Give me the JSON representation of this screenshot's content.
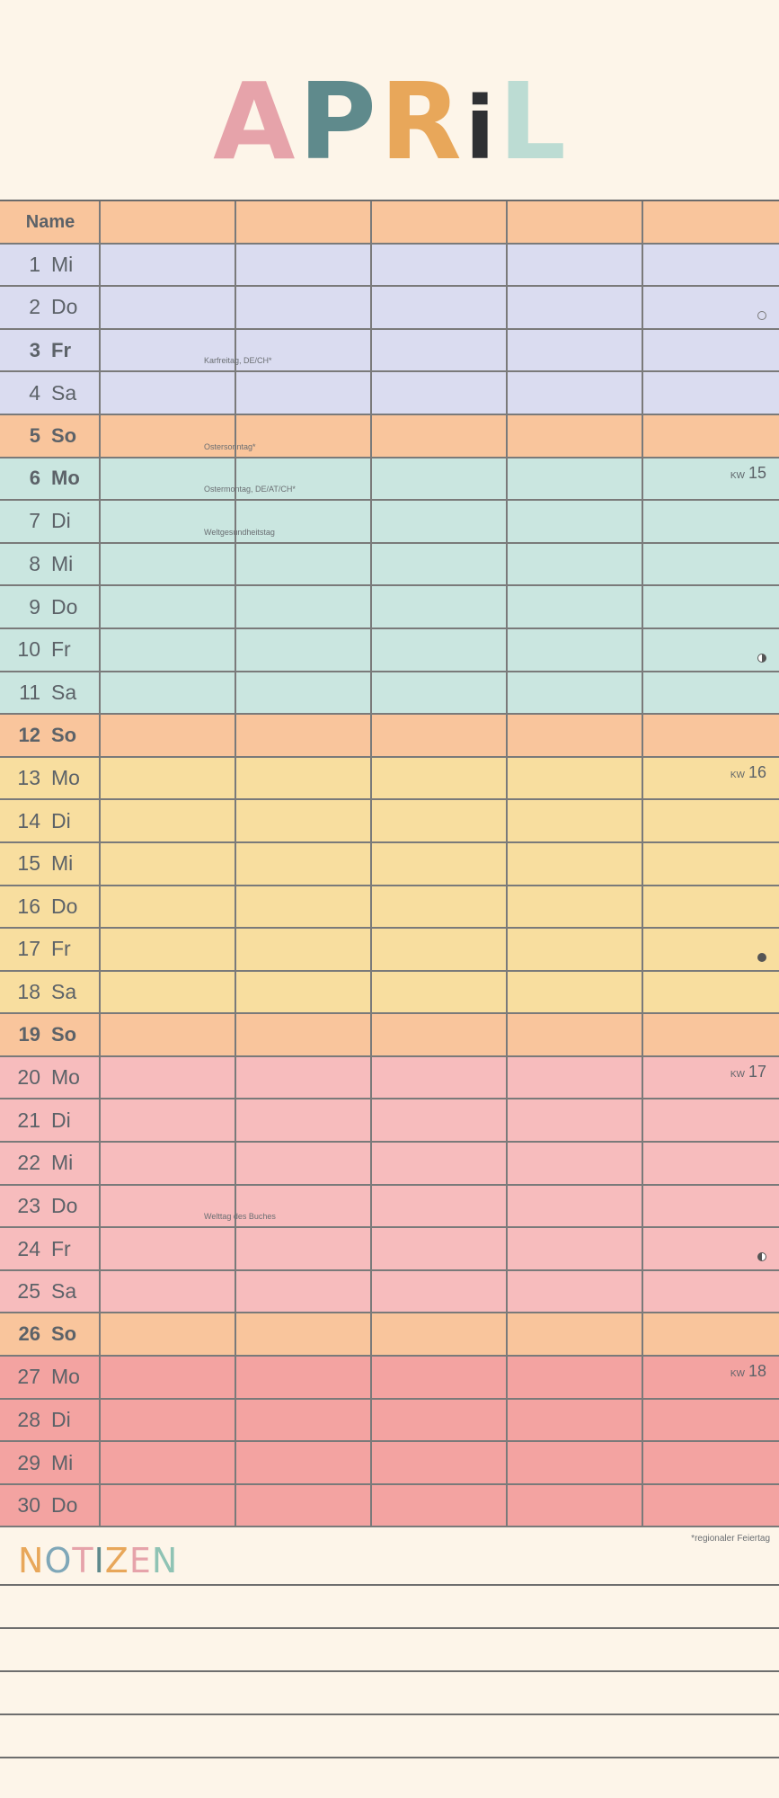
{
  "title": {
    "letters": [
      {
        "char": "A",
        "color": "#e6a3aa"
      },
      {
        "char": "P",
        "color": "#5f8a8c"
      },
      {
        "char": "R",
        "color": "#e8a75a"
      },
      {
        "char": "i",
        "color": "#2f3033"
      },
      {
        "char": "L",
        "color": "#bcdcd3"
      }
    ]
  },
  "header": {
    "name_label": "Name"
  },
  "colors": {
    "header": "#f9c59c",
    "sunday": "#f9c59c",
    "week13": "#dadcf0",
    "week14": "#cae6e0",
    "week15": "#f8de9f",
    "week16": "#f7bcbd",
    "week17": "#f3a3a1"
  },
  "days": [
    {
      "num": "1",
      "dow": "Mi",
      "bg": "week13"
    },
    {
      "num": "2",
      "dow": "Do",
      "bg": "week13",
      "moon": "new"
    },
    {
      "num": "3",
      "dow": "Fr",
      "bg": "week13",
      "bold": true,
      "holiday": "Karfreitag, DE/CH*"
    },
    {
      "num": "4",
      "dow": "Sa",
      "bg": "week13"
    },
    {
      "num": "5",
      "dow": "So",
      "bg": "sunday",
      "bold": true,
      "holiday": "Ostersonntag*"
    },
    {
      "num": "6",
      "dow": "Mo",
      "bg": "week14",
      "bold": true,
      "holiday": "Ostermontag, DE/AT/CH*",
      "kw_label": "KW",
      "kw": "15"
    },
    {
      "num": "7",
      "dow": "Di",
      "bg": "week14",
      "holiday": "Weltgesundheitstag"
    },
    {
      "num": "8",
      "dow": "Mi",
      "bg": "week14"
    },
    {
      "num": "9",
      "dow": "Do",
      "bg": "week14"
    },
    {
      "num": "10",
      "dow": "Fr",
      "bg": "week14",
      "moon": "first"
    },
    {
      "num": "11",
      "dow": "Sa",
      "bg": "week14"
    },
    {
      "num": "12",
      "dow": "So",
      "bg": "sunday",
      "bold": true
    },
    {
      "num": "13",
      "dow": "Mo",
      "bg": "week15",
      "kw_label": "KW",
      "kw": "16"
    },
    {
      "num": "14",
      "dow": "Di",
      "bg": "week15"
    },
    {
      "num": "15",
      "dow": "Mi",
      "bg": "week15"
    },
    {
      "num": "16",
      "dow": "Do",
      "bg": "week15"
    },
    {
      "num": "17",
      "dow": "Fr",
      "bg": "week15",
      "moon": "full"
    },
    {
      "num": "18",
      "dow": "Sa",
      "bg": "week15"
    },
    {
      "num": "19",
      "dow": "So",
      "bg": "sunday",
      "bold": true
    },
    {
      "num": "20",
      "dow": "Mo",
      "bg": "week16",
      "kw_label": "KW",
      "kw": "17"
    },
    {
      "num": "21",
      "dow": "Di",
      "bg": "week16"
    },
    {
      "num": "22",
      "dow": "Mi",
      "bg": "week16"
    },
    {
      "num": "23",
      "dow": "Do",
      "bg": "week16",
      "holiday": "Welttag des Buches"
    },
    {
      "num": "24",
      "dow": "Fr",
      "bg": "week16",
      "moon": "last"
    },
    {
      "num": "25",
      "dow": "Sa",
      "bg": "week16"
    },
    {
      "num": "26",
      "dow": "So",
      "bg": "sunday",
      "bold": true
    },
    {
      "num": "27",
      "dow": "Mo",
      "bg": "week17",
      "kw_label": "KW",
      "kw": "18"
    },
    {
      "num": "28",
      "dow": "Di",
      "bg": "week17"
    },
    {
      "num": "29",
      "dow": "Mi",
      "bg": "week17"
    },
    {
      "num": "30",
      "dow": "Do",
      "bg": "week17"
    }
  ],
  "notes": {
    "title_letters": [
      {
        "char": "N",
        "color": "#e8a75a"
      },
      {
        "char": "O",
        "color": "#7fa7b8"
      },
      {
        "char": "T",
        "color": "#e6a3aa"
      },
      {
        "char": "I",
        "color": "#5f8a8c"
      },
      {
        "char": "Z",
        "color": "#e8a75a"
      },
      {
        "char": "E",
        "color": "#e6a3aa"
      },
      {
        "char": "N",
        "color": "#8fc3b4"
      }
    ],
    "footnote": "*regionaler Feiertag"
  }
}
